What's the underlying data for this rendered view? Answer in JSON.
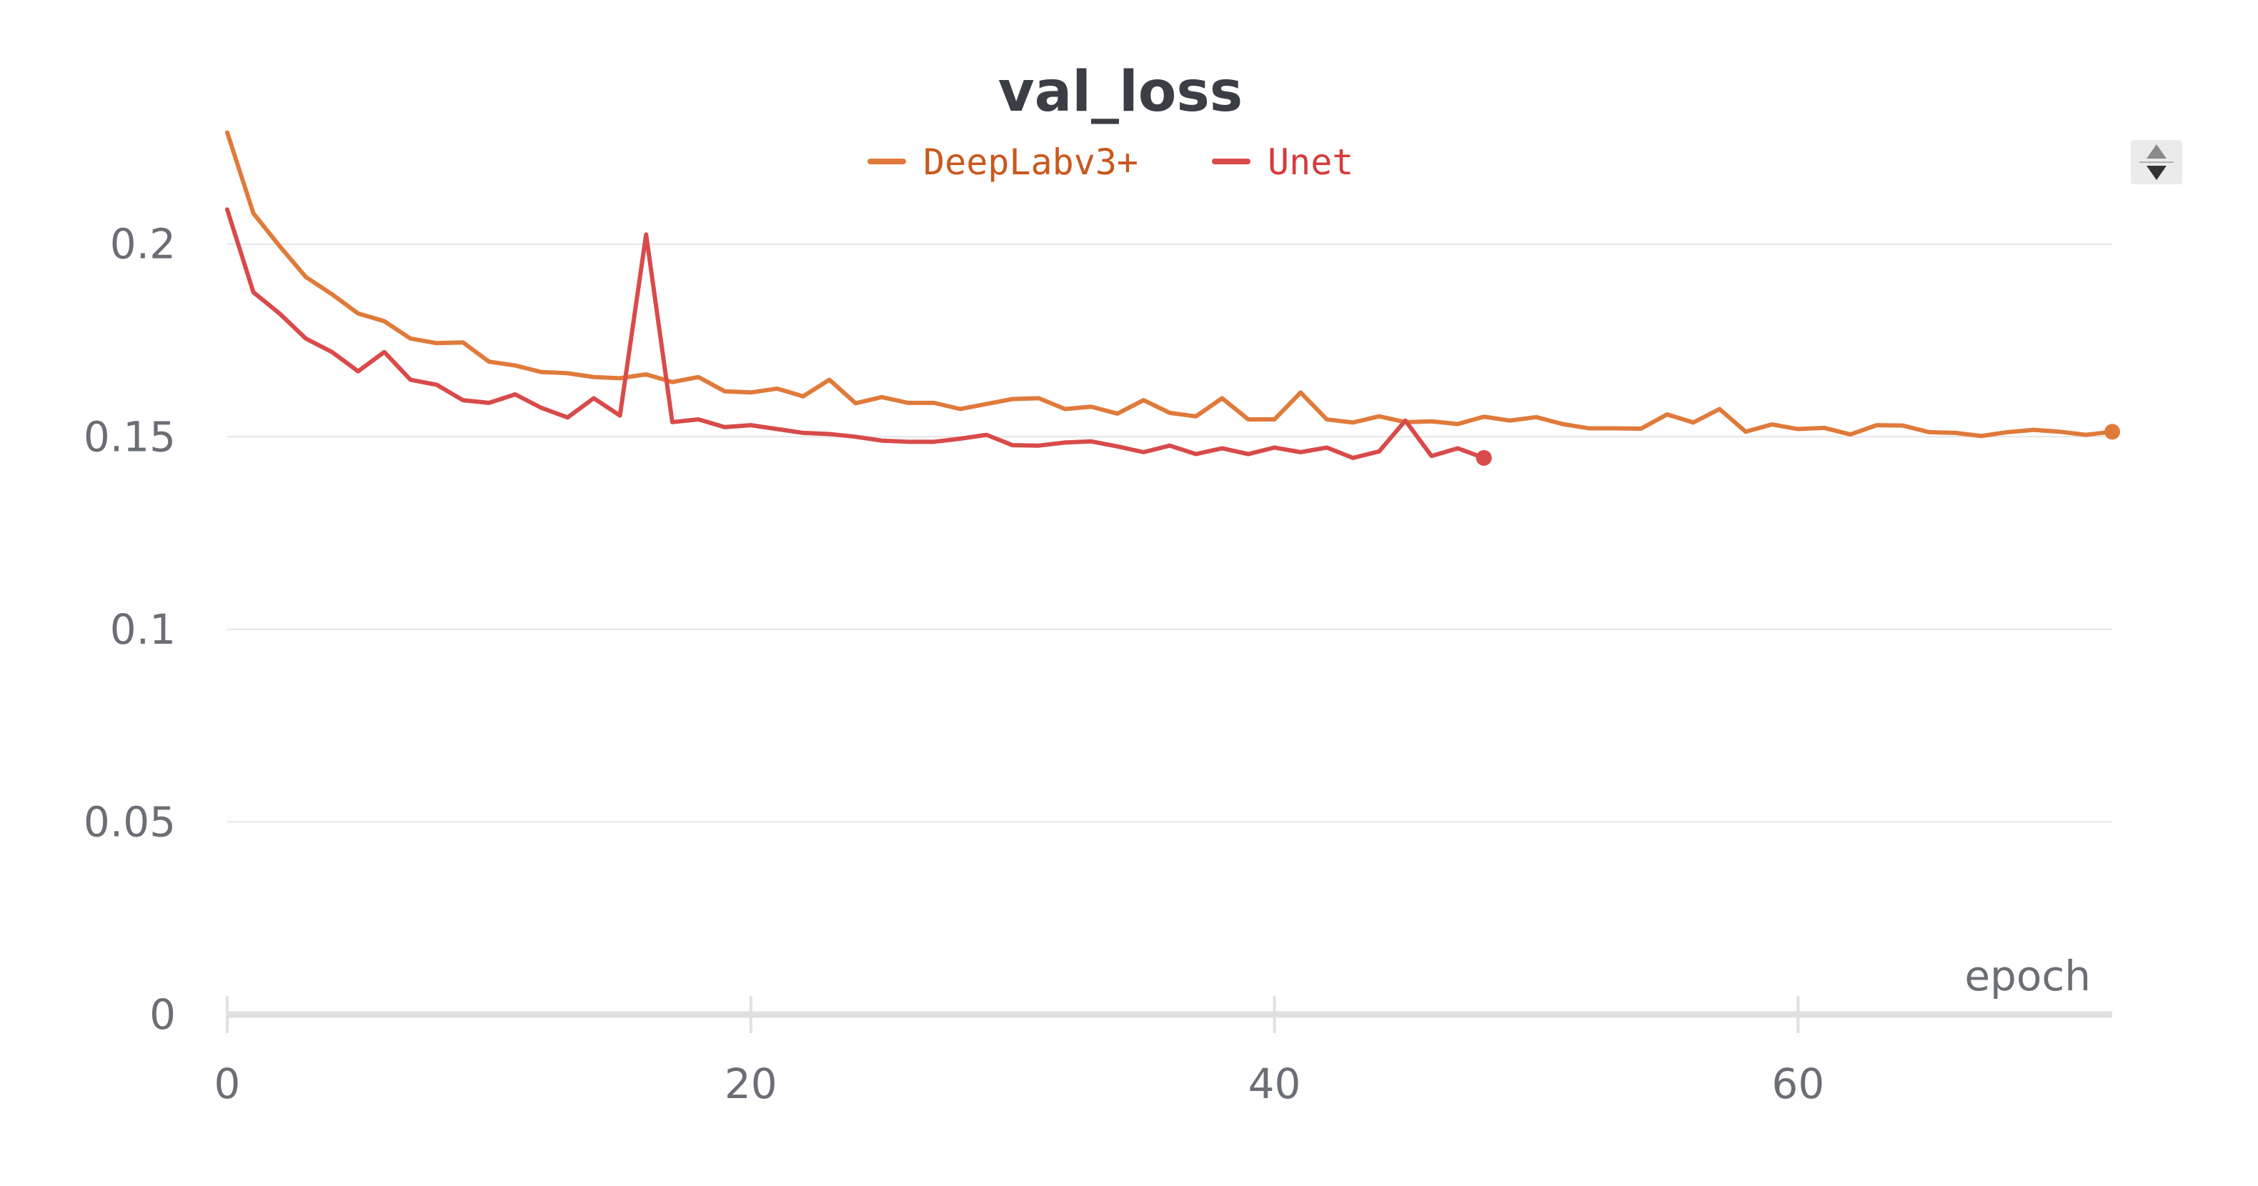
{
  "chart_data": {
    "type": "line",
    "title": "val_loss",
    "xlabel": "epoch",
    "ylabel": "",
    "xlim": [
      0,
      72
    ],
    "ylim": [
      0,
      0.23
    ],
    "x_ticks": [
      "0",
      "20",
      "40",
      "60"
    ],
    "y_ticks": [
      "0",
      "0.05",
      "0.1",
      "0.15",
      "0.2"
    ],
    "grid": true,
    "legend_position": "top-center",
    "series": [
      {
        "name": "DeepLabv3+",
        "color": "#e07a3b",
        "x": [
          0,
          1,
          2,
          3,
          4,
          5,
          6,
          7,
          8,
          9,
          10,
          11,
          12,
          13,
          14,
          15,
          16,
          17,
          18,
          19,
          20,
          21,
          22,
          23,
          24,
          25,
          26,
          27,
          28,
          29,
          30,
          31,
          32,
          33,
          34,
          35,
          36,
          37,
          38,
          39,
          40,
          41,
          42,
          43,
          44,
          45,
          46,
          47,
          48,
          49,
          50,
          51,
          52,
          53,
          54,
          55,
          56,
          57,
          58,
          59,
          60,
          61,
          62,
          63,
          64,
          65,
          66,
          67,
          68,
          69,
          70,
          71,
          72
        ],
        "values": [
          0.229,
          0.208,
          0.1995,
          0.1915,
          0.187,
          0.182,
          0.18,
          0.1755,
          0.1743,
          0.1745,
          0.1695,
          0.1685,
          0.1668,
          0.1665,
          0.1655,
          0.1652,
          0.1662,
          0.1642,
          0.1655,
          0.1618,
          0.1615,
          0.1625,
          0.1605,
          0.1648,
          0.1587,
          0.1603,
          0.1588,
          0.1588,
          0.1572,
          0.1585,
          0.1598,
          0.16,
          0.1572,
          0.1578,
          0.156,
          0.1595,
          0.1562,
          0.1553,
          0.16,
          0.1545,
          0.1545,
          0.1615,
          0.1545,
          0.1537,
          0.1553,
          0.1538,
          0.154,
          0.1533,
          0.1552,
          0.1542,
          0.1551,
          0.1533,
          0.1522,
          0.1522,
          0.1521,
          0.1558,
          0.1537,
          0.1572,
          0.1513,
          0.1532,
          0.152,
          0.1523,
          0.1506,
          0.153,
          0.1529,
          0.1512,
          0.151,
          0.1502,
          0.1512,
          0.1518,
          0.1513,
          0.1505,
          0.1513
        ]
      },
      {
        "name": "Unet",
        "color": "#d94a4a",
        "x": [
          0,
          1,
          2,
          3,
          4,
          5,
          6,
          7,
          8,
          9,
          10,
          11,
          12,
          13,
          14,
          15,
          16,
          17,
          18,
          19,
          20,
          21,
          22,
          23,
          24,
          25,
          26,
          27,
          28,
          29,
          30,
          31,
          32,
          33,
          34,
          35,
          36,
          37,
          38,
          39,
          40,
          41,
          42,
          43,
          44,
          45,
          46,
          47,
          48
        ],
        "values": [
          0.209,
          0.1875,
          0.182,
          0.1755,
          0.172,
          0.167,
          0.172,
          0.1648,
          0.1635,
          0.1595,
          0.1588,
          0.161,
          0.1575,
          0.155,
          0.16,
          0.1555,
          0.2025,
          0.1538,
          0.1545,
          0.1525,
          0.153,
          0.152,
          0.151,
          0.1507,
          0.15,
          0.149,
          0.1487,
          0.1487,
          0.1495,
          0.1505,
          0.1478,
          0.1477,
          0.1485,
          0.1488,
          0.1475,
          0.146,
          0.1477,
          0.1455,
          0.147,
          0.1455,
          0.1472,
          0.146,
          0.1472,
          0.1445,
          0.1462,
          0.1542,
          0.145,
          0.147,
          0.1445
        ]
      }
    ]
  },
  "icons": {
    "scroll_control": "sort-arrows-icon"
  }
}
